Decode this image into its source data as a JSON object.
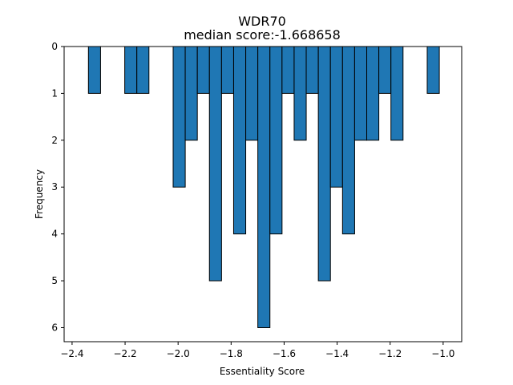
{
  "chart_data": {
    "type": "bar",
    "title": "WDR70",
    "subtitle": "median score:-1.668658",
    "xlabel": "Essentiality Score",
    "ylabel": "Frequency",
    "y_inverted": true,
    "xlim": [
      -2.43,
      -0.93
    ],
    "ylim": [
      0,
      6.3
    ],
    "bin_width": 0.04565,
    "bar_color": "#1f77b4",
    "edge_color": "#000000",
    "bins": [
      {
        "x": -2.3383,
        "count": 1
      },
      {
        "x": -2.2013,
        "count": 1
      },
      {
        "x": -2.1557,
        "count": 1
      },
      {
        "x": -2.0187,
        "count": 3
      },
      {
        "x": -1.9731,
        "count": 2
      },
      {
        "x": -1.9274,
        "count": 1
      },
      {
        "x": -1.8818,
        "count": 5
      },
      {
        "x": -1.8361,
        "count": 1
      },
      {
        "x": -1.7905,
        "count": 4
      },
      {
        "x": -1.7448,
        "count": 2
      },
      {
        "x": -1.6992,
        "count": 6
      },
      {
        "x": -1.6535,
        "count": 4
      },
      {
        "x": -1.6079,
        "count": 1
      },
      {
        "x": -1.5622,
        "count": 2
      },
      {
        "x": -1.5166,
        "count": 1
      },
      {
        "x": -1.4709,
        "count": 5
      },
      {
        "x": -1.4253,
        "count": 3
      },
      {
        "x": -1.3796,
        "count": 4
      },
      {
        "x": -1.334,
        "count": 2
      },
      {
        "x": -1.2883,
        "count": 2
      },
      {
        "x": -1.2427,
        "count": 1
      },
      {
        "x": -1.197,
        "count": 2
      },
      {
        "x": -1.0601,
        "count": 1
      }
    ],
    "x_ticks": [
      {
        "value": -2.4,
        "label": "−2.4"
      },
      {
        "value": -2.2,
        "label": "−2.2"
      },
      {
        "value": -2.0,
        "label": "−2.0"
      },
      {
        "value": -1.8,
        "label": "−1.8"
      },
      {
        "value": -1.6,
        "label": "−1.6"
      },
      {
        "value": -1.4,
        "label": "−1.4"
      },
      {
        "value": -1.2,
        "label": "−1.2"
      },
      {
        "value": -1.0,
        "label": "−1.0"
      }
    ],
    "y_ticks": [
      {
        "value": 0,
        "label": "0"
      },
      {
        "value": 1,
        "label": "1"
      },
      {
        "value": 2,
        "label": "2"
      },
      {
        "value": 3,
        "label": "3"
      },
      {
        "value": 4,
        "label": "4"
      },
      {
        "value": 5,
        "label": "5"
      },
      {
        "value": 6,
        "label": "6"
      }
    ],
    "grid": false,
    "legend": "none"
  }
}
